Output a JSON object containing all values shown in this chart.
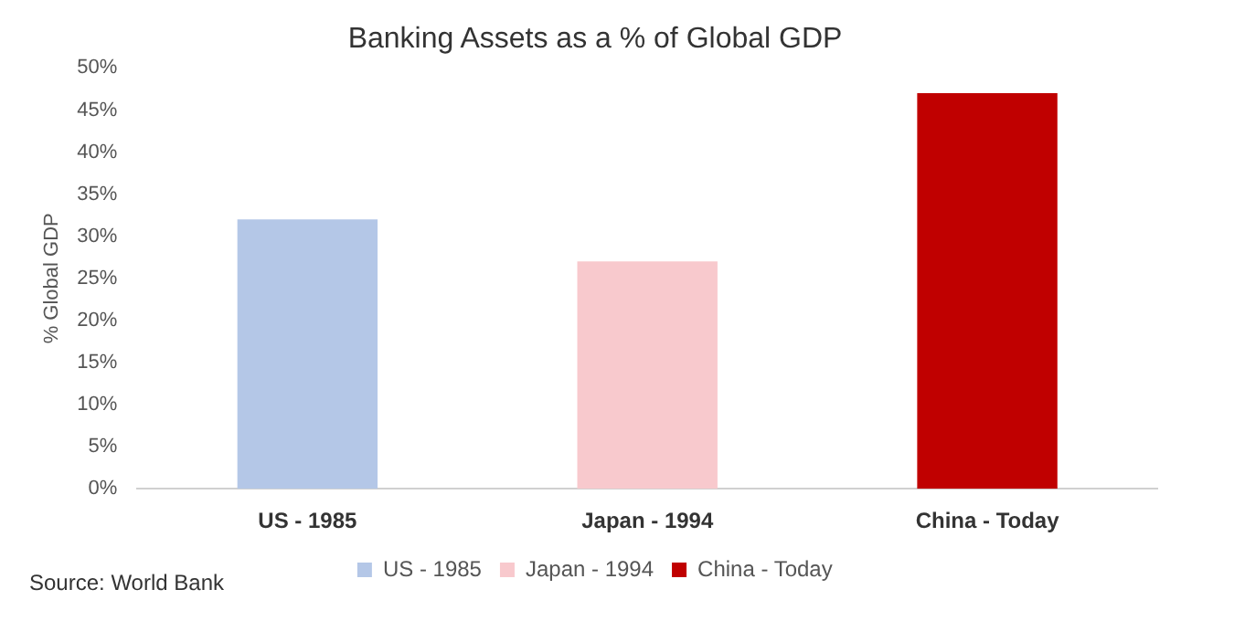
{
  "chart_data": {
    "type": "bar",
    "title": "Banking Assets as a % of Global GDP",
    "ylabel": "% Global GDP",
    "categories": [
      "US - 1985",
      "Japan - 1994",
      "China - Today"
    ],
    "series": [
      {
        "name": "US - 1985",
        "color": "#b4c7e7",
        "values": [
          32,
          null,
          null
        ]
      },
      {
        "name": "Japan - 1994",
        "color": "#f8c9cd",
        "values": [
          null,
          27,
          null
        ]
      },
      {
        "name": "China - Today",
        "color": "#c00000",
        "values": [
          null,
          null,
          47
        ]
      }
    ],
    "ylim": [
      0,
      50
    ],
    "yticks": [
      {
        "value": 0,
        "label": "0%"
      },
      {
        "value": 5,
        "label": "5%"
      },
      {
        "value": 10,
        "label": "10%"
      },
      {
        "value": 15,
        "label": "15%"
      },
      {
        "value": 20,
        "label": "20%"
      },
      {
        "value": 25,
        "label": "25%"
      },
      {
        "value": 30,
        "label": "30%"
      },
      {
        "value": 35,
        "label": "35%"
      },
      {
        "value": 40,
        "label": "40%"
      },
      {
        "value": 45,
        "label": "45%"
      },
      {
        "value": 50,
        "label": "50%"
      }
    ],
    "grid": false,
    "legend": "bottom",
    "annotations": [
      "Source: World Bank"
    ]
  }
}
